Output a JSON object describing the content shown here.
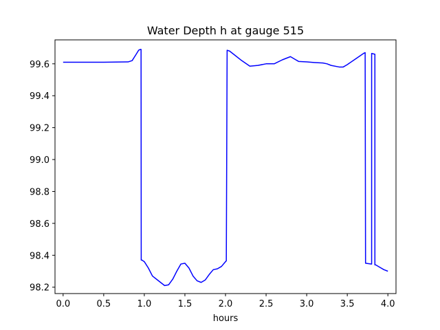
{
  "chart_data": {
    "type": "line",
    "title": "Water Depth h at gauge 515",
    "xlabel": "hours",
    "ylabel": "",
    "xlim": [
      -0.1,
      4.1
    ],
    "ylim": [
      98.16,
      99.75
    ],
    "xticks": [
      0.0,
      0.5,
      1.0,
      1.5,
      2.0,
      2.5,
      3.0,
      3.5,
      4.0
    ],
    "xtick_labels": [
      "0.0",
      "0.5",
      "1.0",
      "1.5",
      "2.0",
      "2.5",
      "3.0",
      "3.5",
      "4.0"
    ],
    "yticks": [
      98.2,
      98.4,
      98.6,
      98.8,
      99.0,
      99.2,
      99.4,
      99.6
    ],
    "ytick_labels": [
      "98.2",
      "98.4",
      "98.6",
      "98.8",
      "99.0",
      "99.2",
      "99.4",
      "99.6"
    ],
    "grid": false,
    "legend": "none",
    "series": [
      {
        "color": "#0000ff",
        "x": [
          0.0,
          0.5,
          0.8,
          0.85,
          0.9,
          0.93,
          0.95,
          0.96,
          0.962,
          0.97,
          1.0,
          1.05,
          1.1,
          1.15,
          1.2,
          1.25,
          1.3,
          1.35,
          1.4,
          1.45,
          1.5,
          1.55,
          1.6,
          1.65,
          1.7,
          1.75,
          1.8,
          1.85,
          1.9,
          1.95,
          2.0,
          2.01,
          2.02,
          2.05,
          2.1,
          2.2,
          2.3,
          2.4,
          2.5,
          2.6,
          2.7,
          2.8,
          2.85,
          2.9,
          3.0,
          3.1,
          3.2,
          3.25,
          3.3,
          3.4,
          3.45,
          3.5,
          3.6,
          3.7,
          3.72,
          3.725,
          3.8,
          3.8,
          3.84,
          3.84,
          3.85,
          3.9,
          3.95,
          4.0
        ],
        "y": [
          99.61,
          99.61,
          99.612,
          99.62,
          99.66,
          99.685,
          99.69,
          99.69,
          98.37,
          98.37,
          98.36,
          98.32,
          98.27,
          98.25,
          98.23,
          98.21,
          98.215,
          98.25,
          98.3,
          98.345,
          98.35,
          98.32,
          98.27,
          98.24,
          98.23,
          98.245,
          98.28,
          98.31,
          98.315,
          98.33,
          98.36,
          98.365,
          99.685,
          99.68,
          99.66,
          99.62,
          99.585,
          99.59,
          99.6,
          99.6,
          99.625,
          99.645,
          99.63,
          99.615,
          99.612,
          99.608,
          99.605,
          99.6,
          99.59,
          99.58,
          99.58,
          99.595,
          99.63,
          99.665,
          99.67,
          98.35,
          98.345,
          99.665,
          99.66,
          98.34,
          98.34,
          98.325,
          98.31,
          98.3
        ]
      }
    ]
  }
}
